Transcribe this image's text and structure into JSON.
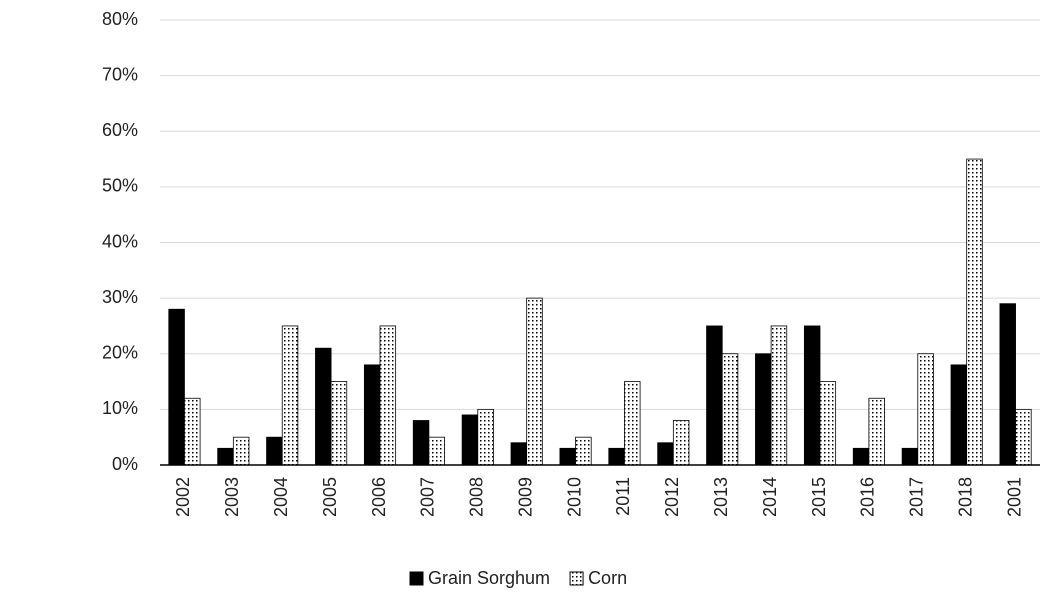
{
  "chart_data": {
    "type": "bar",
    "categories": [
      "2002",
      "2003",
      "2004",
      "2005",
      "2006",
      "2007",
      "2008",
      "2009",
      "2010",
      "2011",
      "2012",
      "2013",
      "2014",
      "2015",
      "2016",
      "2017",
      "2018",
      "2001"
    ],
    "series": [
      {
        "name": "Grain Sorghum",
        "color": "#000000",
        "values": [
          28,
          3,
          5,
          21,
          18,
          8,
          9,
          4,
          3,
          3,
          4,
          25,
          20,
          25,
          3,
          3,
          18,
          29
        ]
      },
      {
        "name": "Corn",
        "color": "#ffffff",
        "values": [
          12,
          5,
          25,
          15,
          25,
          5,
          10,
          30,
          5,
          15,
          8,
          20,
          25,
          15,
          12,
          20,
          55,
          10
        ]
      }
    ],
    "ylim": [
      0,
      80
    ],
    "yticks": [
      {
        "value": 0,
        "label": "0%"
      },
      {
        "value": 10,
        "label": "10%"
      },
      {
        "value": 20,
        "label": "20%"
      },
      {
        "value": 30,
        "label": "30%"
      },
      {
        "value": 40,
        "label": "40%"
      },
      {
        "value": 50,
        "label": "50%"
      },
      {
        "value": 60,
        "label": "60%"
      },
      {
        "value": 70,
        "label": "70%"
      },
      {
        "value": 80,
        "label": "80%"
      }
    ],
    "grid": true
  }
}
